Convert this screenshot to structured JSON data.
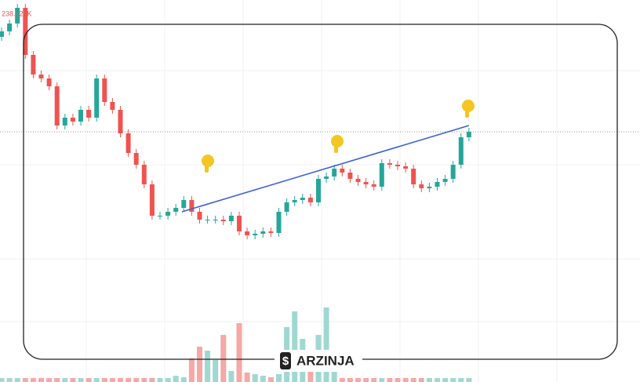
{
  "chart_data": {
    "type": "candlestick",
    "price_label": "238.128K",
    "brand": "ARZINJA",
    "up_color": "#26a69a",
    "down_color": "#ef5350",
    "volume_up_color": "#9fd8d2",
    "volume_down_color": "#f5a8a6",
    "trendline_color": "#3a62d7",
    "ylim": [
      0,
      487
    ],
    "open": [
      440,
      447,
      457,
      477,
      417,
      392,
      387,
      377,
      327,
      337,
      332,
      347,
      337,
      387,
      357,
      347,
      317,
      292,
      277,
      252,
      212,
      212,
      217,
      222,
      232,
      217,
      207,
      207,
      207,
      205,
      212,
      192,
      187,
      189,
      192,
      190,
      217,
      229,
      232,
      235,
      229,
      259,
      262,
      272,
      267,
      259,
      255,
      252,
      249,
      279,
      277,
      275,
      272,
      252,
      247,
      249,
      255,
      259,
      277,
      312
    ],
    "high": [
      452,
      462,
      482,
      482,
      422,
      397,
      392,
      382,
      342,
      342,
      352,
      352,
      392,
      392,
      362,
      352,
      322,
      297,
      282,
      257,
      217,
      222,
      227,
      237,
      237,
      222,
      212,
      212,
      212,
      217,
      217,
      197,
      194,
      197,
      197,
      222,
      234,
      237,
      240,
      240,
      264,
      267,
      277,
      277,
      272,
      264,
      260,
      257,
      284,
      284,
      282,
      280,
      277,
      257,
      254,
      260,
      264,
      282,
      317,
      324
    ],
    "low": [
      435,
      442,
      452,
      412,
      387,
      382,
      372,
      322,
      322,
      327,
      327,
      332,
      332,
      352,
      342,
      312,
      287,
      272,
      247,
      207,
      207,
      207,
      212,
      217,
      212,
      202,
      202,
      202,
      200,
      200,
      187,
      182,
      182,
      184,
      185,
      185,
      212,
      224,
      227,
      224,
      224,
      254,
      257,
      262,
      254,
      250,
      247,
      244,
      244,
      272,
      270,
      267,
      247,
      242,
      242,
      244,
      250,
      254,
      272,
      307
    ],
    "close": [
      447,
      457,
      477,
      417,
      392,
      387,
      377,
      327,
      337,
      332,
      347,
      337,
      387,
      357,
      347,
      317,
      292,
      277,
      252,
      212,
      212,
      217,
      222,
      232,
      217,
      207,
      207,
      207,
      205,
      212,
      192,
      187,
      189,
      192,
      190,
      217,
      229,
      232,
      235,
      229,
      259,
      262,
      272,
      267,
      259,
      255,
      252,
      249,
      279,
      277,
      275,
      272,
      252,
      247,
      249,
      255,
      259,
      277,
      312,
      319
    ],
    "volume": [
      5,
      5,
      5,
      5,
      5,
      5,
      5,
      5,
      5,
      5,
      5,
      5,
      5,
      5,
      5,
      5,
      5,
      5,
      5,
      5,
      5,
      5,
      8,
      6,
      30,
      45,
      40,
      28,
      60,
      14,
      75,
      12,
      10,
      8,
      6,
      10,
      70,
      90,
      55,
      40,
      60,
      95,
      18,
      5,
      5,
      5,
      5,
      5,
      5,
      5,
      5,
      5,
      5,
      5,
      5,
      5,
      5,
      5,
      5,
      5
    ]
  }
}
